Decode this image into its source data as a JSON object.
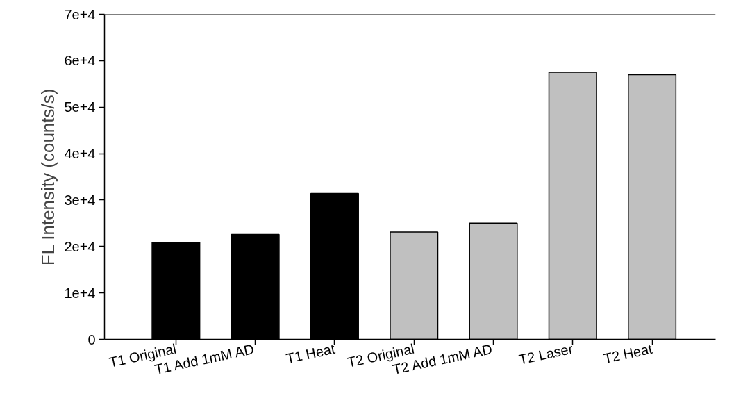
{
  "chart_data": {
    "type": "bar",
    "ylabel": "FL Intensity (counts/s)",
    "categories": [
      "T1 Original",
      "T1 Add 1mM AD",
      "T1 Heat",
      "T2 Original",
      "T2 Add 1mM AD",
      "T2 Laser",
      "T2 Heat"
    ],
    "values": [
      20900,
      22600,
      31400,
      23100,
      25000,
      57500,
      57000
    ],
    "colors": [
      "#000000",
      "#000000",
      "#000000",
      "#c0c0c0",
      "#c0c0c0",
      "#c0c0c0",
      "#c0c0c0"
    ],
    "ylim": [
      0,
      70000
    ],
    "yticks": [
      0,
      {
        "value": 10000,
        "label": "1e+4"
      },
      {
        "value": 20000,
        "label": "2e+4"
      },
      {
        "value": 30000,
        "label": "3e+4"
      },
      {
        "value": 40000,
        "label": "4e+4"
      },
      {
        "value": 50000,
        "label": "5e+4"
      },
      {
        "value": 60000,
        "label": "6e+4"
      },
      {
        "value": 70000,
        "label": "7e+4"
      }
    ],
    "grid": false
  }
}
